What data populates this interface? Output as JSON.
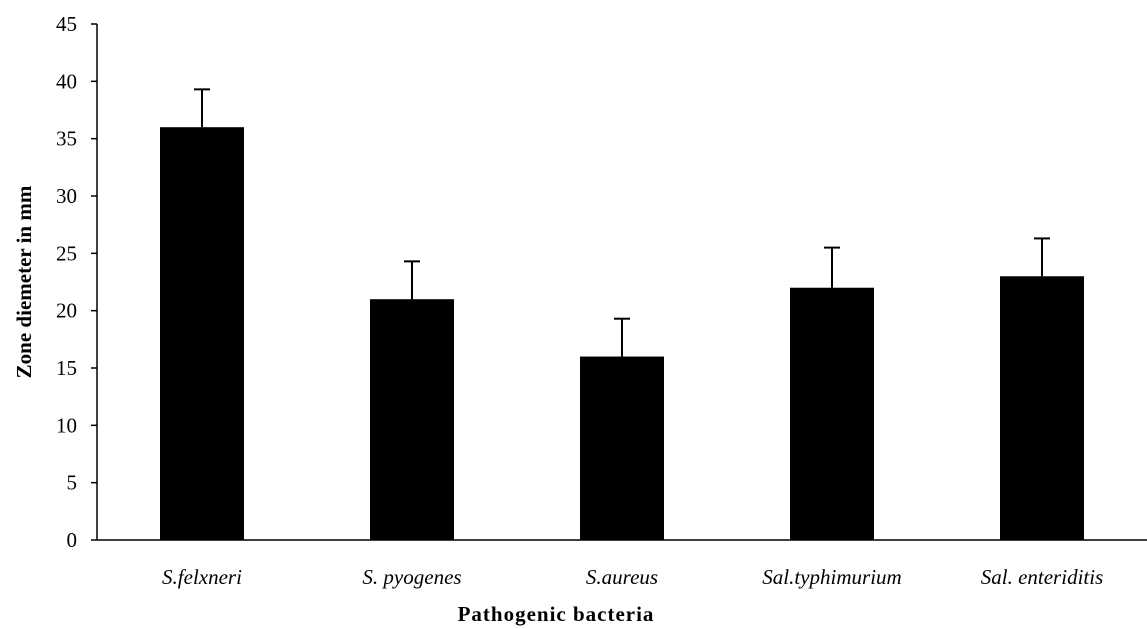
{
  "chart_data": {
    "type": "bar",
    "categories": [
      "S.felxneri",
      "S. pyogenes",
      "S.aureus",
      "Sal.typhimurium",
      "Sal. enteriditis"
    ],
    "values": [
      36,
      21,
      16,
      22,
      23
    ],
    "error_bars": [
      3.3,
      3.3,
      3.3,
      3.5,
      3.3
    ],
    "xlabel": "Pathogenic bacteria",
    "ylabel": "Zone diemeter in mm",
    "ylim": [
      0,
      45
    ],
    "yticks": [
      "0",
      "5",
      "10",
      "15",
      "20",
      "25",
      "30",
      "35",
      "40",
      "45"
    ],
    "grid": false,
    "bar_color": "#000000"
  }
}
